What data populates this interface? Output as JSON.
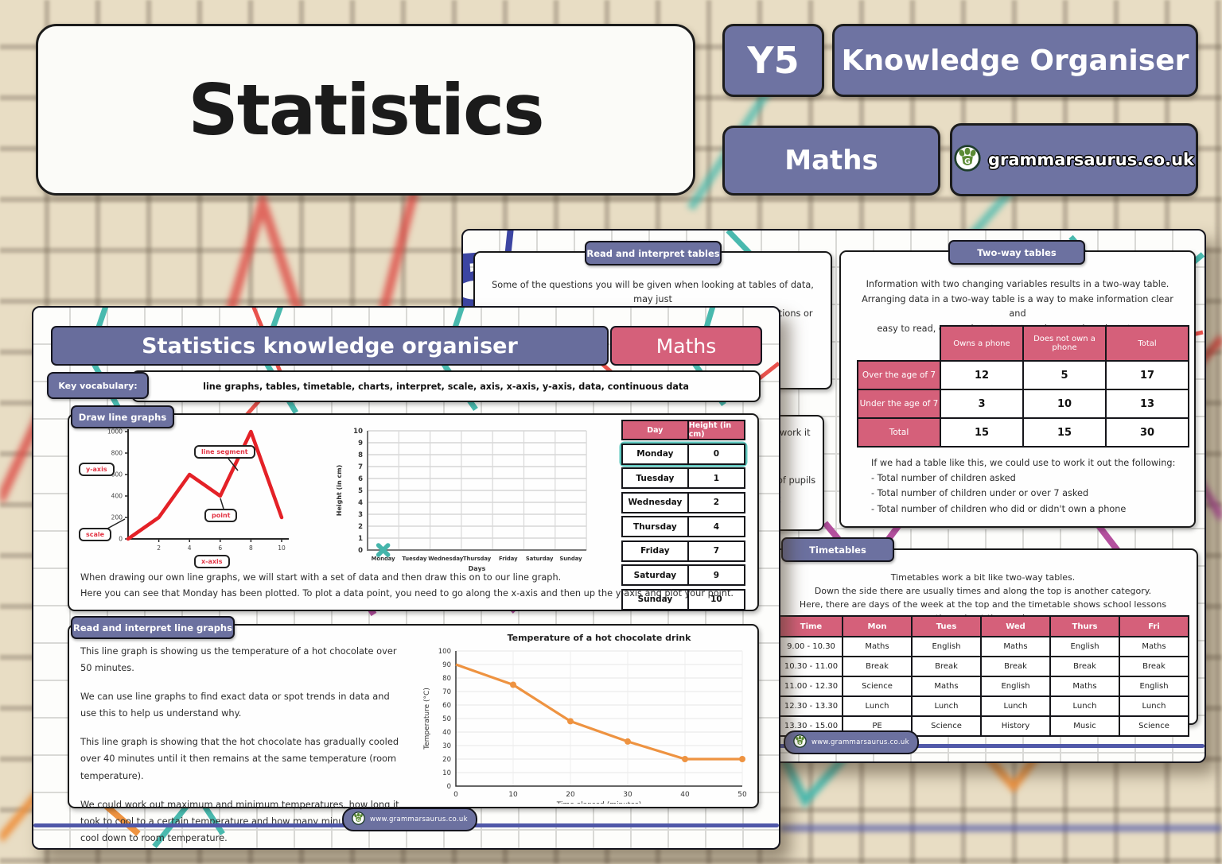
{
  "masthead": {
    "title": "Statistics",
    "year_badge": "Y5",
    "type_badge": "Knowledge Organiser",
    "subject_badge": "Maths",
    "brand": "grammarsaurus.co.uk"
  },
  "front": {
    "banner": "Statistics knowledge organiser",
    "subject": "Maths",
    "vocab_label": "Key vocabulary:",
    "vocab": "line graphs, tables, timetable, charts, interpret, scale, axis, x-axis, y-axis, data, continuous data",
    "draw_section": {
      "title": "Draw line graphs",
      "labels": {
        "y_axis": "y-axis",
        "line_segment": "line segment",
        "point": "point",
        "scale": "scale",
        "x_axis": "x-axis"
      },
      "line1": "When drawing our own line graphs, we will start with a set of data and then draw this on to our line graph.",
      "line2": "Here you can see that Monday has been plotted. To plot a data point, you need to go along the x-axis and then up the y-axis and plot your point.",
      "table": {
        "headers": [
          "Day",
          "Height (in cm)"
        ],
        "rows": [
          [
            "Monday",
            "0"
          ],
          [
            "Tuesday",
            "1"
          ],
          [
            "Wednesday",
            "2"
          ],
          [
            "Thursday",
            "4"
          ],
          [
            "Friday",
            "7"
          ],
          [
            "Saturday",
            "9"
          ],
          [
            "Sunday",
            "10"
          ]
        ],
        "highlighted_row": 0
      }
    },
    "read_section": {
      "title": "Read and interpret line graphs",
      "paragraphs": [
        "This line graph is showing us the temperature of a hot chocolate over 50 minutes.",
        "We can use line graphs to find exact data or spot trends in data and use this to help us understand why.",
        "This line graph is showing that the hot chocolate has gradually cooled over 40 minutes until it then remains at the same temperature (room temperature).",
        "We could work out maximum and minimum temperatures, how long it took to cool to a certain temperature and how many minutes it took to cool down to room temperature."
      ]
    },
    "footer_url": "www.grammarsaurus.co.uk"
  },
  "back": {
    "tables_section": {
      "title": "Read and interpret tables",
      "line1": "Some of the questions you will be given when looking at tables of data, may just",
      "line2": "be simple retrieval questions. Others may involve some calculations or comparisons."
    },
    "obscured_fragments": [
      "work it",
      "of pupils",
      "t"
    ],
    "two_way_section": {
      "title": "Two-way tables",
      "intro_lines": [
        "Information with two changing variables results in a two-way table.",
        "Arranging data in a two-way table is a way to make information clear and",
        "easy to read, even when two categories are changing at once."
      ],
      "table": {
        "col_headers": [
          "Owns a phone",
          "Does not own a phone",
          "Total"
        ],
        "row_headers": [
          "Over the age of 7",
          "Under the age of 7",
          "Total"
        ],
        "values": [
          [
            "12",
            "5",
            "17"
          ],
          [
            "3",
            "10",
            "13"
          ],
          [
            "15",
            "15",
            "30"
          ]
        ]
      },
      "outro_lines": [
        "If we had a table like this, we could use to work it out the following:",
        "- Total number of children asked",
        "- Total number of children under or over 7 asked",
        "- Total number of children who did or didn't own a phone"
      ]
    },
    "timetable_section": {
      "title": "Timetables",
      "intro_lines": [
        "Timetables work a bit like two-way tables.",
        "Down the side there are usually times and along the top is another category.",
        "Here, there are days of the week at the top and the timetable shows school lessons throughout the week."
      ],
      "table": {
        "headers": [
          "Time",
          "Mon",
          "Tues",
          "Wed",
          "Thurs",
          "Fri"
        ],
        "rows": [
          [
            "9.00 - 10.30",
            "Maths",
            "English",
            "Maths",
            "English",
            "Maths"
          ],
          [
            "10.30 - 11.00",
            "Break",
            "Break",
            "Break",
            "Break",
            "Break"
          ],
          [
            "11.00 - 12.30",
            "Science",
            "Maths",
            "English",
            "Maths",
            "English"
          ],
          [
            "12.30 - 13.30",
            "Lunch",
            "Lunch",
            "Lunch",
            "Lunch",
            "Lunch"
          ],
          [
            "13.30 - 15.00",
            "PE",
            "Science",
            "History",
            "Music",
            "Science"
          ]
        ]
      }
    },
    "footer_url": "www.grammarsaurus.co.uk"
  },
  "chart_data": [
    {
      "name": "annotated-example-line-graph",
      "type": "line",
      "x": [
        0,
        2,
        4,
        6,
        8,
        10
      ],
      "y": [
        0,
        200,
        600,
        400,
        1000,
        200
      ],
      "xticks": [
        2,
        4,
        6,
        8,
        10
      ],
      "yticks": [
        0,
        200,
        400,
        600,
        800,
        1000
      ],
      "xlim": [
        0,
        10
      ],
      "ylim": [
        0,
        1000
      ],
      "line_color": "#e42127",
      "annotations": [
        "y-axis",
        "line segment",
        "point",
        "scale",
        "x-axis"
      ]
    },
    {
      "name": "blank-plotting-grid",
      "type": "line",
      "xlabel": "Days",
      "ylabel": "Height (in cm)",
      "categories": [
        "Monday",
        "Tuesday",
        "Wednesday",
        "Thursday",
        "Friday",
        "Saturday",
        "Sunday"
      ],
      "yticks": [
        0,
        1,
        2,
        3,
        4,
        5,
        6,
        7,
        8,
        9,
        10
      ],
      "ylim": [
        0,
        10
      ],
      "plotted_points": [
        {
          "x": "Monday",
          "y": 0
        }
      ],
      "marker_color": "#45b5ab",
      "grid": true
    },
    {
      "name": "hot-chocolate-cooling",
      "type": "line",
      "title": "Temperature of a hot chocolate drink",
      "xlabel": "Time elapsed (minutes)",
      "ylabel": "Temperature (°C)",
      "x": [
        0,
        10,
        20,
        30,
        40,
        50
      ],
      "y": [
        90,
        75,
        48,
        33,
        20,
        20
      ],
      "xlim": [
        0,
        50
      ],
      "ylim": [
        0,
        100
      ],
      "yticks": [
        0,
        10,
        20,
        30,
        40,
        50,
        60,
        70,
        80,
        90,
        100
      ],
      "xticks": [
        0,
        10,
        20,
        30,
        40,
        50
      ],
      "line_color": "#ee9341",
      "grid": true
    }
  ]
}
